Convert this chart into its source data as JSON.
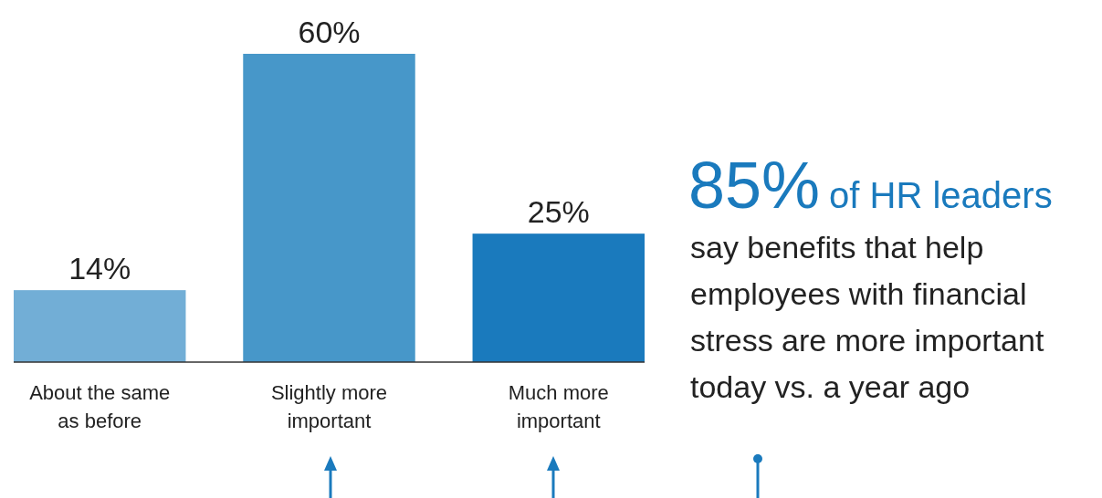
{
  "chart_data": {
    "type": "bar",
    "categories": [
      "About the same\nas before",
      "Slightly more\nimportant",
      "Much more\nimportant"
    ],
    "values": [
      14,
      60,
      25
    ],
    "colors": [
      "#72aed6",
      "#4797c9",
      "#1a7abd"
    ],
    "value_labels": [
      "14%",
      "60%",
      "25%"
    ],
    "annotations": [
      "85%",
      "of HR leaders",
      "say benefits that help",
      "employees with financial",
      "stress are more important",
      "today vs. a year ago"
    ],
    "grid": false
  }
}
